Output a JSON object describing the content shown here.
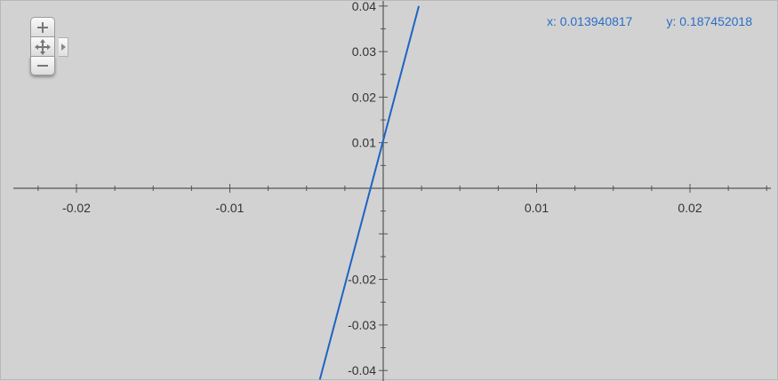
{
  "graph": {
    "x_ticks": [
      "-0.02",
      "-0.01",
      "0.01",
      "0.02"
    ],
    "y_ticks": [
      "0.04",
      "0.03",
      "0.02",
      "0.01",
      "-0.02",
      "-0.03",
      "-0.04"
    ],
    "x_range": [
      -0.025,
      0.025
    ],
    "y_range": [
      -0.042,
      0.04
    ],
    "curve_color": "#1f63c4",
    "axis_color": "#555555",
    "background_color": "#d2d2d2"
  },
  "coordinates": {
    "x_label": "x: 0.013940817",
    "y_label": "y: 0.187452018",
    "color": "#2a6ec6"
  },
  "controls": {
    "zoom_in_icon": "plus-icon",
    "pan_icon": "move-arrows-icon",
    "expand_icon": "chevron-right-icon",
    "zoom_out_icon": "minus-icon"
  }
}
